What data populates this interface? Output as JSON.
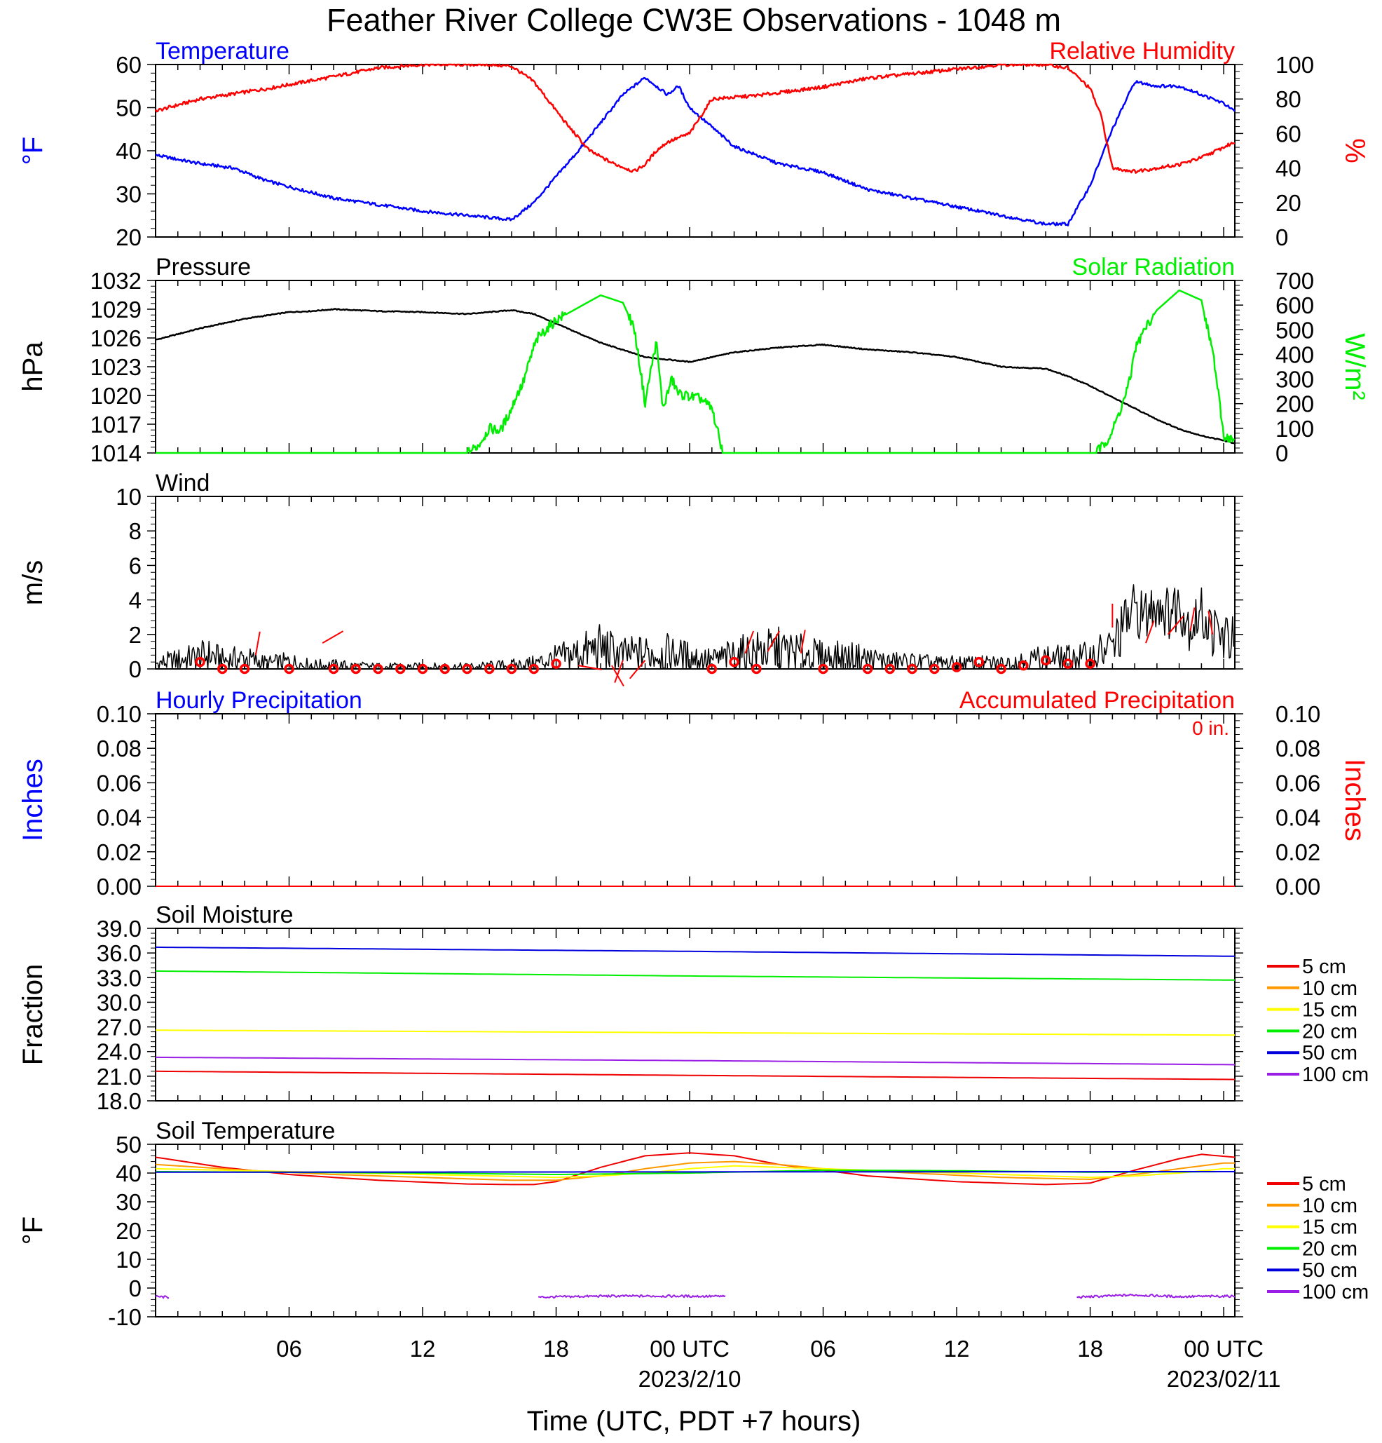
{
  "title": "Feather River College CW3E Observations - 1048 m",
  "colors": {
    "temperature": "#0000ff",
    "humidity": "#ff0000",
    "pressure": "#000000",
    "solar": "#00ee00",
    "wind": "#000000",
    "wind_symbols": "#ff0000",
    "precip_hourly": "#0000ff",
    "precip_accum": "#ff0000",
    "depth_5": "#ee0000",
    "depth_10": "#ff9900",
    "depth_15": "#ffff00",
    "depth_20": "#00ee00",
    "depth_50": "#0000dd",
    "depth_100": "#9a1ee6"
  },
  "x_axis": {
    "title": "Time (UTC, PDT +7 hours)",
    "tick_labels": [
      "06",
      "12",
      "18",
      "00 UTC",
      "06",
      "12",
      "18",
      "00 UTC"
    ],
    "tick_hours": [
      6,
      12,
      18,
      24,
      30,
      36,
      42,
      48
    ],
    "date_labels": [
      "2023/2/10",
      "2023/02/11"
    ],
    "date_hours": [
      24,
      48
    ],
    "range_hours": [
      0,
      48.5
    ]
  },
  "chart_data": [
    {
      "panel": "temperature-humidity",
      "type": "line",
      "left_title": "Temperature",
      "right_title": "Relative Humidity",
      "ylabel_left": "°F",
      "ylabel_right": "%",
      "ylim_left": [
        20,
        60
      ],
      "ylim_right": [
        0,
        100
      ],
      "yticks_left": [
        "60",
        "50",
        "40",
        "30",
        "20"
      ],
      "yticks_right": [
        "100",
        "80",
        "60",
        "40",
        "20",
        "0"
      ],
      "series": [
        {
          "axis": "left",
          "x": [
            0,
            2,
            3.5,
            5,
            8,
            12,
            15,
            16,
            17,
            19,
            21,
            22,
            23,
            23.5,
            24,
            26,
            28,
            30,
            32,
            35,
            38,
            40,
            41,
            42,
            43,
            44,
            45,
            46,
            47,
            48,
            48.5
          ],
          "y": [
            39,
            37,
            36,
            33,
            29,
            26,
            24.5,
            24,
            28,
            40,
            53,
            57,
            53,
            55,
            50,
            41,
            37,
            35,
            31,
            28,
            25,
            23,
            23,
            32,
            45,
            56,
            55,
            55,
            53,
            51,
            49
          ]
        },
        {
          "axis": "right",
          "x": [
            0,
            2,
            5,
            8,
            10,
            12,
            15,
            16,
            17,
            18.5,
            19.5,
            20.5,
            21.5,
            22,
            22.5,
            23,
            24,
            25,
            27,
            30,
            32,
            35,
            38,
            40,
            41,
            42,
            42.5,
            43,
            44,
            46,
            47,
            48,
            48.5
          ],
          "y": [
            73,
            80,
            86,
            93,
            98,
            100,
            100,
            99,
            90,
            65,
            50,
            43,
            38,
            42,
            50,
            55,
            60,
            80,
            82,
            87,
            92,
            96,
            100,
            100,
            98,
            86,
            70,
            40,
            38,
            42,
            46,
            52,
            55
          ]
        }
      ]
    },
    {
      "panel": "pressure-solar",
      "type": "line",
      "left_title": "Pressure",
      "right_title": "Solar Radiation",
      "ylabel_left": "hPa",
      "ylabel_right": "W/m2",
      "ylim_left": [
        1014,
        1032
      ],
      "ylim_right": [
        0,
        700
      ],
      "yticks_left": [
        "1032",
        "1029",
        "1026",
        "1023",
        "1020",
        "1017",
        "1014"
      ],
      "yticks_right": [
        "700",
        "600",
        "500",
        "400",
        "300",
        "200",
        "100",
        "0"
      ],
      "series": [
        {
          "axis": "left",
          "x": [
            0,
            2,
            4,
            6,
            7,
            8,
            10,
            12,
            14,
            16,
            17,
            19,
            20,
            22,
            24,
            26,
            28,
            30,
            32,
            34,
            36,
            38,
            40,
            41,
            42,
            43,
            45,
            46,
            47,
            48,
            48.5
          ],
          "y": [
            1025.8,
            1027,
            1028,
            1028.7,
            1028.8,
            1029,
            1028.8,
            1028.7,
            1028.5,
            1028.9,
            1028.5,
            1026.5,
            1025.5,
            1024,
            1023.5,
            1024.5,
            1025,
            1025.3,
            1024.8,
            1024.5,
            1024,
            1023,
            1022.8,
            1022,
            1021,
            1019.8,
            1017.5,
            1016.5,
            1015.8,
            1015.3,
            1015
          ]
        },
        {
          "axis": "right",
          "x": [
            0,
            14,
            14.5,
            15,
            15.5,
            16,
            16.2,
            16.5,
            17,
            17.2,
            18,
            20,
            21,
            21.5,
            21.8,
            22,
            22.2,
            22.5,
            22.8,
            23.2,
            23.5,
            24.5,
            25,
            25.5,
            42.2,
            42.6,
            43,
            43.5,
            43.8,
            44,
            44.5,
            45,
            46,
            47,
            47.2,
            47.5,
            48,
            48.5
          ],
          "y": [
            0,
            0,
            30,
            100,
            90,
            180,
            230,
            280,
            430,
            470,
            540,
            640,
            610,
            510,
            330,
            200,
            310,
            450,
            180,
            300,
            240,
            220,
            180,
            0,
            0,
            30,
            90,
            210,
            300,
            420,
            510,
            580,
            660,
            620,
            530,
            420,
            70,
            50
          ]
        }
      ]
    },
    {
      "panel": "wind",
      "type": "line",
      "left_title": "Wind",
      "ylabel_left": "m/s",
      "ylim_left": [
        0,
        10
      ],
      "yticks_left": [
        "10",
        "8",
        "6",
        "4",
        "2",
        "0"
      ],
      "series": [
        {
          "axis": "left",
          "x": [
            0,
            1,
            2,
            2.5,
            3,
            4,
            5,
            6,
            7,
            8,
            10,
            12,
            14,
            16,
            17,
            18,
            19,
            20,
            21,
            22,
            23,
            24,
            25,
            26,
            27,
            28,
            29,
            30,
            31,
            32,
            33,
            34,
            35,
            36,
            37,
            38,
            39,
            40,
            41,
            42,
            43,
            43.5,
            44,
            44.5,
            45,
            45.5,
            46,
            46.5,
            47,
            47.5,
            48,
            48.5
          ],
          "y": [
            0.3,
            0.5,
            0.7,
            0.8,
            0.5,
            0.6,
            0.3,
            0.4,
            0.2,
            0.2,
            0.1,
            0.1,
            0.1,
            0.2,
            0.3,
            0.6,
            0.9,
            1.2,
            0.8,
            0.9,
            0.9,
            0.7,
            0.5,
            0.8,
            1.0,
            1.1,
            0.9,
            0.7,
            0.7,
            0.6,
            0.4,
            0.4,
            0.3,
            0.3,
            0.3,
            0.3,
            0.5,
            0.6,
            0.6,
            0.7,
            1.2,
            2.5,
            3.5,
            3.0,
            4.0,
            3.2,
            3.8,
            2.5,
            3.2,
            2.2,
            1.8,
            1.6
          ]
        }
      ],
      "calm_circle_hours": [
        2,
        3,
        4,
        6,
        8,
        9,
        10,
        11,
        12,
        13,
        14,
        15,
        16,
        17,
        18,
        25,
        26,
        27,
        30,
        32,
        33,
        34,
        35,
        36,
        37,
        38,
        39,
        40,
        41,
        42
      ],
      "calm_circle_speeds": [
        0.4,
        0,
        0,
        0,
        0,
        0,
        0,
        0,
        0,
        0,
        0,
        0,
        0,
        0,
        0.3,
        0,
        0.4,
        0,
        0,
        0,
        0,
        0,
        0,
        0.1,
        0.4,
        0,
        0.2,
        0.5,
        0.3,
        0.3
      ],
      "barb_hours": [
        4.5,
        7.5,
        19,
        20.5,
        21,
        22,
        26.5,
        27.5,
        29,
        43,
        44.5,
        45.5,
        46.5,
        47.5
      ],
      "barb_speeds": [
        0.8,
        1.5,
        0.2,
        0.2,
        0.5,
        0.5,
        0.9,
        1.0,
        0.9,
        2.4,
        1.5,
        2.0,
        2.2,
        2.0
      ],
      "barb_dirs_deg": [
        10,
        60,
        100,
        150,
        200,
        220,
        20,
        30,
        10,
        0,
        20,
        40,
        10,
        350
      ]
    },
    {
      "panel": "precipitation",
      "type": "line",
      "left_title": "Hourly Precipitation",
      "right_title": "Accumulated Precipitation",
      "annotation": "0 in.",
      "ylabel_left": "Inches",
      "ylabel_right": "Inches",
      "ylim_left": [
        0,
        0.1
      ],
      "ylim_right": [
        0,
        0.1
      ],
      "yticks_left": [
        "0.10",
        "0.08",
        "0.06",
        "0.04",
        "0.02",
        "0.00"
      ],
      "yticks_right": [
        "0.10",
        "0.08",
        "0.06",
        "0.04",
        "0.02",
        "0.00"
      ],
      "series": [
        {
          "axis": "left",
          "x": [
            0,
            48.5
          ],
          "y": [
            0,
            0
          ]
        },
        {
          "axis": "right",
          "x": [
            0,
            48.5
          ],
          "y": [
            0,
            0
          ]
        }
      ]
    },
    {
      "panel": "soil-moisture",
      "type": "line",
      "left_title": "Soil Moisture",
      "ylabel_left": "Fraction",
      "ylim_left": [
        18,
        39
      ],
      "yticks_left": [
        "39.0",
        "36.0",
        "33.0",
        "30.0",
        "27.0",
        "24.0",
        "21.0",
        "18.0"
      ],
      "legend": [
        "5 cm",
        "10 cm",
        "15 cm",
        "20 cm",
        "50 cm",
        "100 cm"
      ],
      "series": [
        {
          "name": "5 cm",
          "x": [
            0,
            24,
            48.5
          ],
          "y": [
            21.6,
            21.1,
            20.6
          ]
        },
        {
          "name": "15 cm",
          "x": [
            0,
            24,
            48.5
          ],
          "y": [
            26.6,
            26.3,
            26.0
          ]
        },
        {
          "name": "20 cm",
          "x": [
            0,
            24,
            48.5
          ],
          "y": [
            33.8,
            33.2,
            32.7
          ]
        },
        {
          "name": "50 cm",
          "x": [
            0,
            24,
            48.5
          ],
          "y": [
            36.7,
            36.2,
            35.6
          ]
        },
        {
          "name": "100 cm",
          "x": [
            0,
            24,
            48.5
          ],
          "y": [
            23.3,
            22.9,
            22.4
          ]
        }
      ]
    },
    {
      "panel": "soil-temperature",
      "type": "line",
      "left_title": "Soil Temperature",
      "ylabel_left": "°F",
      "ylim_left": [
        -10,
        50
      ],
      "yticks_left": [
        "50",
        "40",
        "30",
        "20",
        "10",
        "0",
        "-10"
      ],
      "legend": [
        "5 cm",
        "10 cm",
        "15 cm",
        "20 cm",
        "50 cm",
        "100 cm"
      ],
      "series": [
        {
          "name": "5 cm",
          "x": [
            0,
            3,
            6,
            10,
            14,
            16,
            17,
            18,
            20,
            22,
            24,
            26,
            28,
            30,
            32,
            36,
            40,
            42,
            44,
            46,
            47,
            48.5
          ],
          "y": [
            45.5,
            42,
            39.5,
            37.5,
            36.2,
            36,
            36,
            37,
            42,
            46,
            47,
            46,
            43,
            41,
            39,
            37,
            36,
            36.5,
            41,
            45,
            46.5,
            45.5
          ]
        },
        {
          "name": "10 cm",
          "x": [
            0,
            4,
            8,
            12,
            16,
            18,
            20,
            22,
            24,
            26,
            28,
            30,
            34,
            38,
            42,
            44,
            46,
            48,
            48.5
          ],
          "y": [
            43,
            41,
            39.5,
            38.5,
            37.5,
            37.5,
            39,
            41.5,
            43.5,
            44,
            43,
            41.5,
            40,
            38.5,
            37.8,
            39.5,
            41.5,
            43.5,
            43.5
          ]
        },
        {
          "name": "15 cm",
          "x": [
            0,
            6,
            12,
            18,
            20,
            22,
            24,
            26,
            28,
            32,
            38,
            42,
            44,
            46,
            48,
            48.5
          ],
          "y": [
            41.5,
            40.5,
            39.5,
            38.5,
            39,
            40,
            41.5,
            42.5,
            42,
            41,
            39.5,
            38.5,
            39,
            40,
            41.5,
            41.5
          ]
        },
        {
          "name": "20 cm",
          "x": [
            0,
            12,
            18,
            24,
            30,
            36,
            42,
            48.5
          ],
          "y": [
            40.5,
            40,
            39.5,
            40,
            41,
            40.8,
            40.3,
            40.5
          ]
        },
        {
          "name": "50 cm",
          "x": [
            0,
            48.5
          ],
          "y": [
            40.3,
            40.5
          ]
        },
        {
          "name": "100 cm",
          "x": [
            0,
            0.6,
            17.2,
            20,
            23,
            25.6,
            41.4,
            44,
            46,
            48.5
          ],
          "y": [
            -3,
            -3.2,
            -3.2,
            -2.8,
            -2.8,
            -2.9,
            -3.2,
            -2.4,
            -3.0,
            -2.8
          ],
          "segments": [
            [
              0,
              0.6
            ],
            [
              17.2,
              25.6
            ],
            [
              41.4,
              48.5
            ]
          ]
        }
      ]
    }
  ]
}
